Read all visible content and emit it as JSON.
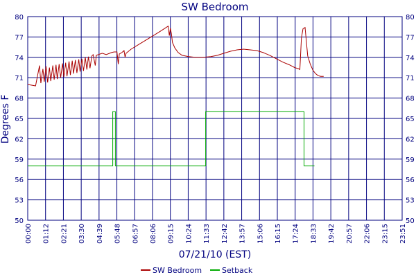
{
  "chart_data": {
    "type": "line",
    "title": "SW Bedroom",
    "xlabel": "07/21/10 (EST)",
    "ylabel": "Degrees F",
    "xlim": [
      0,
      1431
    ],
    "ylim": [
      50,
      80
    ],
    "y_ticks": [
      "50",
      "53",
      "56",
      "59",
      "62",
      "65",
      "68",
      "71",
      "74",
      "77",
      "80"
    ],
    "x_tick_labels": [
      "00:00",
      "01:12",
      "02:21",
      "03:30",
      "04:39",
      "05:48",
      "06:57",
      "08:06",
      "09:15",
      "10:24",
      "11:33",
      "12:42",
      "13:57",
      "15:06",
      "16:15",
      "17:24",
      "18:33",
      "19:42",
      "20:57",
      "22:06",
      "23:15",
      "23:51"
    ],
    "grid": true,
    "legend_position": "bottom",
    "colors": {
      "title": "#00007f",
      "frame": "#00007f",
      "background": "#ffffff"
    },
    "series": [
      {
        "name": "SW Bedroom",
        "color": "#aa0000",
        "points": [
          [
            0,
            70.0
          ],
          [
            30,
            69.8
          ],
          [
            45,
            72.8
          ],
          [
            50,
            70.2
          ],
          [
            58,
            72.3
          ],
          [
            63,
            70.4
          ],
          [
            70,
            72.7
          ],
          [
            76,
            70.3
          ],
          [
            83,
            72.5
          ],
          [
            88,
            70.5
          ],
          [
            96,
            72.8
          ],
          [
            101,
            70.7
          ],
          [
            108,
            72.9
          ],
          [
            113,
            70.8
          ],
          [
            120,
            73.0
          ],
          [
            126,
            71.0
          ],
          [
            133,
            73.1
          ],
          [
            138,
            71.1
          ],
          [
            145,
            73.2
          ],
          [
            150,
            71.2
          ],
          [
            158,
            73.4
          ],
          [
            163,
            71.4
          ],
          [
            170,
            73.5
          ],
          [
            175,
            71.6
          ],
          [
            182,
            73.6
          ],
          [
            188,
            71.7
          ],
          [
            195,
            73.7
          ],
          [
            200,
            71.9
          ],
          [
            207,
            73.8
          ],
          [
            213,
            72.0
          ],
          [
            220,
            74.0
          ],
          [
            226,
            72.2
          ],
          [
            232,
            74.1
          ],
          [
            238,
            72.4
          ],
          [
            245,
            74.2
          ],
          [
            250,
            74.4
          ],
          [
            258,
            72.8
          ],
          [
            262,
            74.3
          ],
          [
            285,
            74.6
          ],
          [
            300,
            74.4
          ],
          [
            320,
            74.7
          ],
          [
            330,
            74.8
          ],
          [
            341,
            74.8
          ],
          [
            346,
            73.0
          ],
          [
            350,
            74.5
          ],
          [
            360,
            74.7
          ],
          [
            368,
            75.0
          ],
          [
            372,
            74.0
          ],
          [
            376,
            74.6
          ],
          [
            395,
            75.2
          ],
          [
            420,
            75.8
          ],
          [
            450,
            76.5
          ],
          [
            480,
            77.2
          ],
          [
            505,
            77.8
          ],
          [
            525,
            78.3
          ],
          [
            537,
            78.6
          ],
          [
            541,
            77.2
          ],
          [
            545,
            78.3
          ],
          [
            549,
            77.5
          ],
          [
            553,
            76.2
          ],
          [
            562,
            75.4
          ],
          [
            575,
            74.7
          ],
          [
            590,
            74.3
          ],
          [
            615,
            74.1
          ],
          [
            640,
            74.0
          ],
          [
            670,
            74.0
          ],
          [
            700,
            74.1
          ],
          [
            725,
            74.3
          ],
          [
            750,
            74.6
          ],
          [
            775,
            74.9
          ],
          [
            800,
            75.1
          ],
          [
            825,
            75.2
          ],
          [
            850,
            75.1
          ],
          [
            875,
            75.0
          ],
          [
            900,
            74.7
          ],
          [
            925,
            74.3
          ],
          [
            950,
            73.8
          ],
          [
            975,
            73.3
          ],
          [
            1000,
            72.9
          ],
          [
            1020,
            72.5
          ],
          [
            1036,
            72.3
          ],
          [
            1040,
            72.2
          ],
          [
            1046,
            76.8
          ],
          [
            1052,
            78.2
          ],
          [
            1060,
            78.4
          ],
          [
            1065,
            76.3
          ],
          [
            1070,
            74.2
          ],
          [
            1080,
            73.0
          ],
          [
            1090,
            72.1
          ],
          [
            1100,
            71.6
          ],
          [
            1110,
            71.3
          ],
          [
            1120,
            71.2
          ],
          [
            1131,
            71.2
          ]
        ]
      },
      {
        "name": "Setback",
        "color": "#00aa00",
        "points": [
          [
            0,
            58.0
          ],
          [
            325,
            58.0
          ],
          [
            325,
            66.0
          ],
          [
            335,
            66.0
          ],
          [
            335,
            58.0
          ],
          [
            680,
            58.0
          ],
          [
            680,
            66.0
          ],
          [
            1056,
            66.0
          ],
          [
            1056,
            58.0
          ],
          [
            1096,
            58.0
          ]
        ]
      }
    ]
  }
}
